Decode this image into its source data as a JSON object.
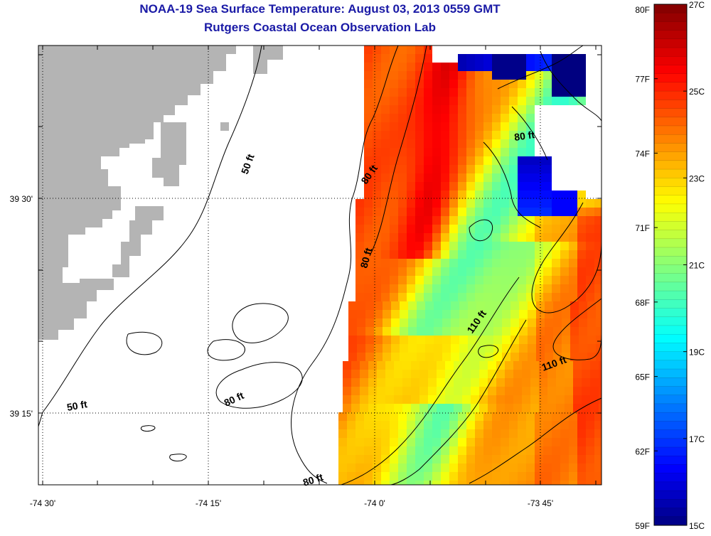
{
  "title": "NOAA-19 Sea Surface Temperature:  August 03, 2013 0559 GMT",
  "subtitle": "Rutgers Coastal Ocean Observation Lab",
  "axes": {
    "x_ticks": [
      "-74 30'",
      "-74 15'",
      "-74 0'",
      "-73 45'"
    ],
    "y_ticks": [
      "39 30'",
      "39 15'"
    ]
  },
  "contour_labels": [
    "50 ft",
    "50 ft",
    "80 ft",
    "80 ft",
    "80 ft",
    "80 ft",
    "80 ft",
    "110 ft",
    "110 ft"
  ],
  "colorbar": {
    "f_labels": [
      "80F",
      "77F",
      "74F",
      "71F",
      "68F",
      "65F",
      "62F",
      "59F"
    ],
    "c_labels": [
      "27C",
      "25C",
      "23C",
      "21C",
      "19C",
      "17C",
      "15C"
    ],
    "min_c": 15,
    "max_c": 27
  },
  "colors": {
    "title": "#1a1aa6",
    "land": "#b4b4b4"
  }
}
